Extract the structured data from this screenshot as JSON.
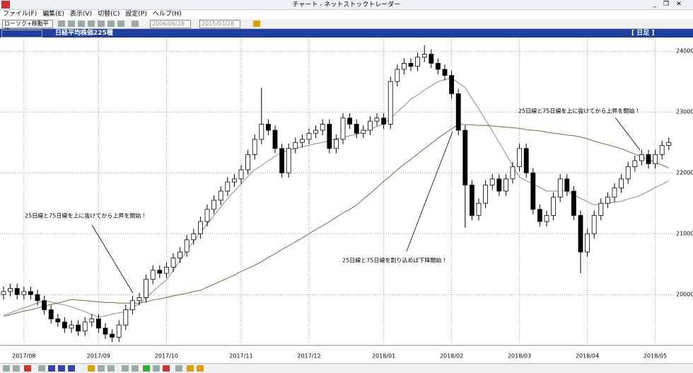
{
  "window": {
    "title": "チャート - ネットストックトレーダー"
  },
  "menu": [
    "ファイル(F)",
    "編集(E)",
    "表示(V)",
    "切替(C)",
    "設定(P)",
    "ヘルプ(H)"
  ],
  "toolbar": {
    "chart_kind": "ローソク+移動平均",
    "date_from": "2006/06/28",
    "date_to": "2015/03/28"
  },
  "header": {
    "name": "日経平均株価225種",
    "period": "[ 日足 ]"
  },
  "chart_data": {
    "type": "candlestick",
    "categories": [
      null,
      null,
      null,
      "2017/08",
      null,
      null,
      null,
      null,
      null,
      null,
      null,
      null,
      null,
      null,
      "2017/09",
      null,
      null,
      null,
      null,
      null,
      null,
      null,
      null,
      null,
      "2017/10",
      null,
      null,
      null,
      null,
      null,
      null,
      null,
      null,
      null,
      null,
      "2017/11",
      null,
      null,
      null,
      null,
      null,
      null,
      null,
      null,
      null,
      "2017/12",
      null,
      null,
      null,
      null,
      null,
      null,
      null,
      null,
      null,
      null,
      "2018/01",
      null,
      null,
      null,
      null,
      null,
      null,
      null,
      null,
      null,
      "2018/02",
      null,
      null,
      null,
      null,
      null,
      null,
      null,
      null,
      null,
      "2018/03",
      null,
      null,
      null,
      null,
      null,
      null,
      null,
      null,
      null,
      "2018/04",
      null,
      null,
      null,
      null,
      null,
      null,
      null,
      null,
      null,
      "2018/05",
      null,
      null
    ],
    "open": [
      20000,
      20050,
      20100,
      20000,
      20050,
      20000,
      19900,
      19750,
      19600,
      19550,
      19450,
      19500,
      19400,
      19550,
      19600,
      19450,
      19350,
      19300,
      19500,
      19750,
      19900,
      19950,
      20250,
      20400,
      20350,
      20450,
      20600,
      20700,
      20900,
      21000,
      21200,
      21400,
      21550,
      21700,
      21850,
      21900,
      22050,
      22300,
      22550,
      22800,
      22700,
      22400,
      22000,
      22400,
      22500,
      22550,
      22650,
      22700,
      22800,
      22400,
      22550,
      22900,
      22800,
      22650,
      22700,
      22850,
      22900,
      22800,
      23500,
      23700,
      23800,
      23750,
      23900,
      23950,
      23800,
      23700,
      23600,
      23300,
      22700,
      21800,
      21300,
      21500,
      21800,
      21900,
      21700,
      21900,
      22100,
      22400,
      22000,
      21400,
      21200,
      21300,
      21600,
      21900,
      21700,
      21300,
      20700,
      21000,
      21300,
      21500,
      21600,
      21750,
      21900,
      22100,
      22200,
      22300,
      22150,
      22300,
      22450
    ],
    "high": [
      20130,
      20180,
      20180,
      20130,
      20130,
      20080,
      19980,
      19830,
      19680,
      19630,
      19580,
      19580,
      19630,
      19680,
      19680,
      19530,
      19430,
      19580,
      19830,
      19980,
      20030,
      20330,
      20480,
      20480,
      20530,
      20680,
      20780,
      20980,
      21080,
      21280,
      21480,
      21630,
      21780,
      21930,
      21980,
      22130,
      22380,
      22630,
      23400,
      22880,
      22780,
      22480,
      22480,
      22580,
      22630,
      22730,
      22780,
      22880,
      22880,
      22630,
      22980,
      22980,
      22880,
      22780,
      22930,
      22980,
      22980,
      23580,
      23780,
      23880,
      23880,
      23980,
      24100,
      24030,
      23880,
      23780,
      23680,
      23380,
      22780,
      21880,
      21580,
      21880,
      21980,
      21980,
      21980,
      22180,
      22480,
      22480,
      22080,
      21480,
      21380,
      21680,
      21980,
      21980,
      21780,
      21380,
      21080,
      21380,
      21580,
      21680,
      21830,
      21980,
      22180,
      22280,
      22380,
      22380,
      22380,
      22530,
      22580
    ],
    "low": [
      19920,
      19970,
      19920,
      19920,
      19920,
      19820,
      19670,
      19520,
      19470,
      19370,
      19370,
      19320,
      19320,
      19470,
      19370,
      19270,
      19220,
      19220,
      19420,
      19670,
      19820,
      19870,
      20170,
      20270,
      20270,
      20370,
      20520,
      20620,
      20820,
      20920,
      21120,
      21320,
      21470,
      21620,
      21770,
      21820,
      21970,
      22220,
      22470,
      22620,
      22320,
      21920,
      21920,
      22320,
      22420,
      22470,
      22570,
      22620,
      22320,
      22320,
      22470,
      22720,
      22570,
      22570,
      22620,
      22770,
      22720,
      22720,
      23420,
      23620,
      23670,
      23670,
      23820,
      23720,
      23620,
      23520,
      23220,
      22620,
      21100,
      21220,
      21220,
      21420,
      21720,
      21620,
      21620,
      21820,
      22020,
      21920,
      21320,
      21120,
      21120,
      21220,
      21520,
      21620,
      21220,
      20350,
      20620,
      20920,
      21220,
      21420,
      21520,
      21670,
      21820,
      22020,
      22120,
      22070,
      22070,
      22220,
      22370
    ],
    "close": [
      20050,
      20100,
      20000,
      20050,
      20000,
      19900,
      19750,
      19600,
      19550,
      19450,
      19500,
      19400,
      19550,
      19600,
      19450,
      19350,
      19300,
      19500,
      19750,
      19900,
      19950,
      20250,
      20400,
      20350,
      20450,
      20600,
      20700,
      20900,
      21000,
      21200,
      21400,
      21550,
      21700,
      21850,
      21900,
      22050,
      22300,
      22550,
      22800,
      22700,
      22400,
      22000,
      22400,
      22500,
      22550,
      22650,
      22700,
      22800,
      22400,
      22550,
      22900,
      22800,
      22650,
      22700,
      22850,
      22900,
      22800,
      23500,
      23700,
      23800,
      23750,
      23900,
      23950,
      23800,
      23700,
      23600,
      23300,
      22700,
      21800,
      21300,
      21500,
      21800,
      21900,
      21700,
      21900,
      22100,
      22400,
      22000,
      21400,
      21200,
      21300,
      21600,
      21900,
      21700,
      21300,
      20700,
      21000,
      21300,
      21500,
      21600,
      21750,
      21900,
      22100,
      22200,
      22300,
      22150,
      22300,
      22450,
      22500
    ],
    "up_color": "#ffffff",
    "down_color": "#000000",
    "series": [
      {
        "color": "#8a8a8a",
        "values": [
          19660,
          19700,
          19740,
          19780,
          19820,
          19860,
          19900,
          19880,
          19850,
          19830,
          19800,
          19760,
          19720,
          19670,
          19630,
          19650,
          19680,
          19700,
          19720,
          19790,
          19850,
          19950,
          20050,
          20150,
          20240,
          20400,
          20560,
          20720,
          20880,
          21020,
          21160,
          21300,
          21440,
          21580,
          21700,
          21820,
          21940,
          22050,
          22120,
          22200,
          22270,
          22340,
          22370,
          22400,
          22430,
          22450,
          22480,
          22500,
          22530,
          22560,
          22580,
          22610,
          22630,
          22670,
          22720,
          22760,
          22800,
          22900,
          23000,
          23100,
          23210,
          23280,
          23360,
          23430,
          23500,
          23530,
          23560,
          23480,
          23400,
          23220,
          23050,
          22870,
          22690,
          22500,
          22310,
          22120,
          21930,
          21870,
          21820,
          21760,
          21700,
          21700,
          21700,
          21700,
          21640,
          21580,
          21530,
          21470,
          21490,
          21500,
          21520,
          21530,
          21570,
          21600,
          21640,
          21700,
          21760,
          21810,
          21870
        ]
      },
      {
        "color": "#4f7f3f",
        "values": [
          19640,
          19670,
          19700,
          19730,
          19750,
          19780,
          19810,
          19840,
          19860,
          19890,
          19920,
          19910,
          19900,
          19890,
          19880,
          19870,
          19870,
          19860,
          19860,
          19860,
          19860,
          19880,
          19910,
          19930,
          19950,
          19980,
          20000,
          20020,
          20050,
          20070,
          20120,
          20170,
          20220,
          20270,
          20320,
          20380,
          20430,
          20480,
          20540,
          20610,
          20670,
          20740,
          20800,
          20870,
          20930,
          21000,
          21070,
          21130,
          21200,
          21270,
          21340,
          21400,
          21470,
          21570,
          21660,
          21760,
          21860,
          21950,
          22050,
          22140,
          22220,
          22310,
          22400,
          22480,
          22570,
          22650,
          22720,
          22800,
          22790,
          22790,
          22780,
          22780,
          22770,
          22760,
          22750,
          22740,
          22730,
          22710,
          22700,
          22690,
          22670,
          22650,
          22640,
          22620,
          22610,
          22590,
          22560,
          22520,
          22490,
          22460,
          22430,
          22400,
          22350,
          22310,
          22260,
          22220,
          22170,
          22130,
          22080
        ]
      }
    ],
    "ylim": [
      19200,
      24200
    ],
    "yticks": [
      20000,
      21000,
      22000,
      23000,
      24000
    ],
    "grid": true,
    "annotations": [
      {
        "text": "25日線と75日線を上に抜けてから上昇を開始！"
      },
      {
        "text": "25日線と75日線を割り込めば下降開始！"
      },
      {
        "text": "25日線と75日線を上に抜けてから上昇を開始！"
      }
    ]
  }
}
